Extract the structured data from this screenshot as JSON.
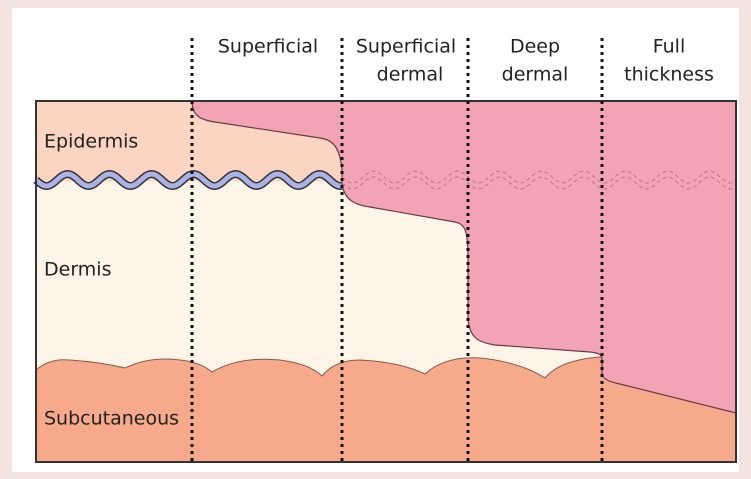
{
  "columns": [
    {
      "lines": [
        "Superficial"
      ]
    },
    {
      "lines": [
        "Superficial",
        "dermal"
      ]
    },
    {
      "lines": [
        "Deep",
        "dermal"
      ]
    },
    {
      "lines": [
        "Full",
        "thickness"
      ]
    }
  ],
  "layers": [
    {
      "label": "Epidermis"
    },
    {
      "label": "Dermis"
    },
    {
      "label": "Subcutaneous"
    }
  ]
}
